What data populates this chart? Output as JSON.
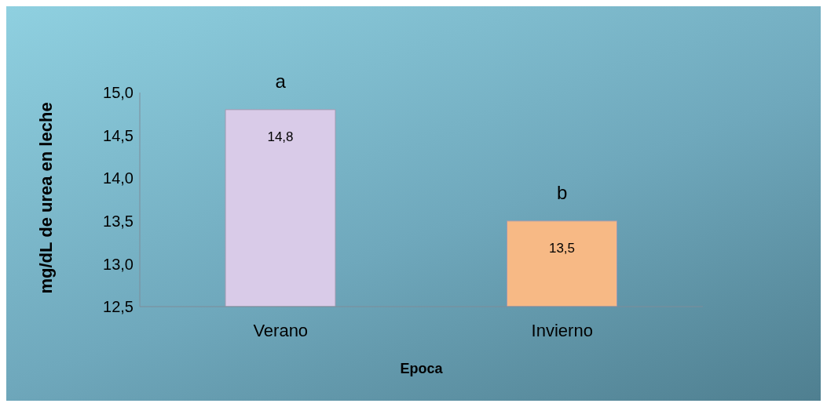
{
  "chart_data": {
    "type": "bar",
    "categories": [
      "Verano",
      "Invierno"
    ],
    "values": [
      14.8,
      13.5
    ],
    "colors": [
      "#d9cbe8",
      "#f7b985"
    ],
    "value_labels": [
      "14,8",
      "13,5"
    ],
    "xlabel": "Epoca",
    "ylabel": "mg/dL de urea en leche",
    "ylim": [
      12.5,
      15.0
    ],
    "yticks": [
      {
        "value": 12.5,
        "label": "12,5"
      },
      {
        "value": 13.0,
        "label": "13,0"
      },
      {
        "value": 13.5,
        "label": "13,5"
      },
      {
        "value": 14.0,
        "label": "14,0"
      },
      {
        "value": 14.5,
        "label": "14,5"
      },
      {
        "value": 15.0,
        "label": "15,0"
      }
    ],
    "annotations": [
      {
        "text": "a",
        "x": "Verano",
        "y": 14.8
      },
      {
        "text": "b",
        "x": "Invierno",
        "y": 13.5
      }
    ],
    "grid": false,
    "legend": false
  }
}
